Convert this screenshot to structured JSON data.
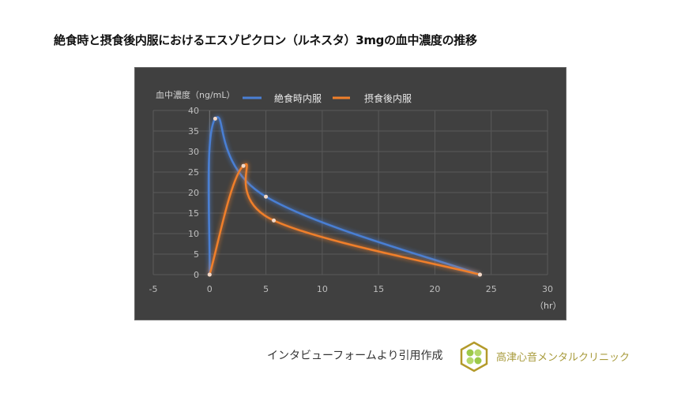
{
  "title": "絶食時と摂食後内服におけるエスゾピクロン（ルネスタ）3mgの血中濃度の推移",
  "chart_data": {
    "type": "line",
    "title": "",
    "ylabel": "血中濃度（ng/mL）",
    "xlabel": "（hr）",
    "xlim": [
      -5,
      30
    ],
    "ylim": [
      0,
      40
    ],
    "xticks": [
      -5,
      0,
      5,
      10,
      15,
      20,
      25,
      30
    ],
    "yticks": [
      0,
      5,
      10,
      15,
      20,
      25,
      30,
      35,
      40
    ],
    "grid": true,
    "smooth": true,
    "legend_position": "top",
    "series": [
      {
        "name": "絶食時内服",
        "color": "#4a7fd4",
        "x": [
          0,
          0.5,
          5,
          24
        ],
        "y": [
          0,
          38,
          19,
          0
        ]
      },
      {
        "name": "摂食後内服",
        "color": "#f07f2a",
        "x": [
          0,
          3,
          5.7,
          24
        ],
        "y": [
          0,
          26.5,
          13.2,
          0
        ]
      }
    ]
  },
  "footer": {
    "source": "インタビューフォームより引用作成",
    "clinic": "高津心音メンタルクリニック"
  }
}
